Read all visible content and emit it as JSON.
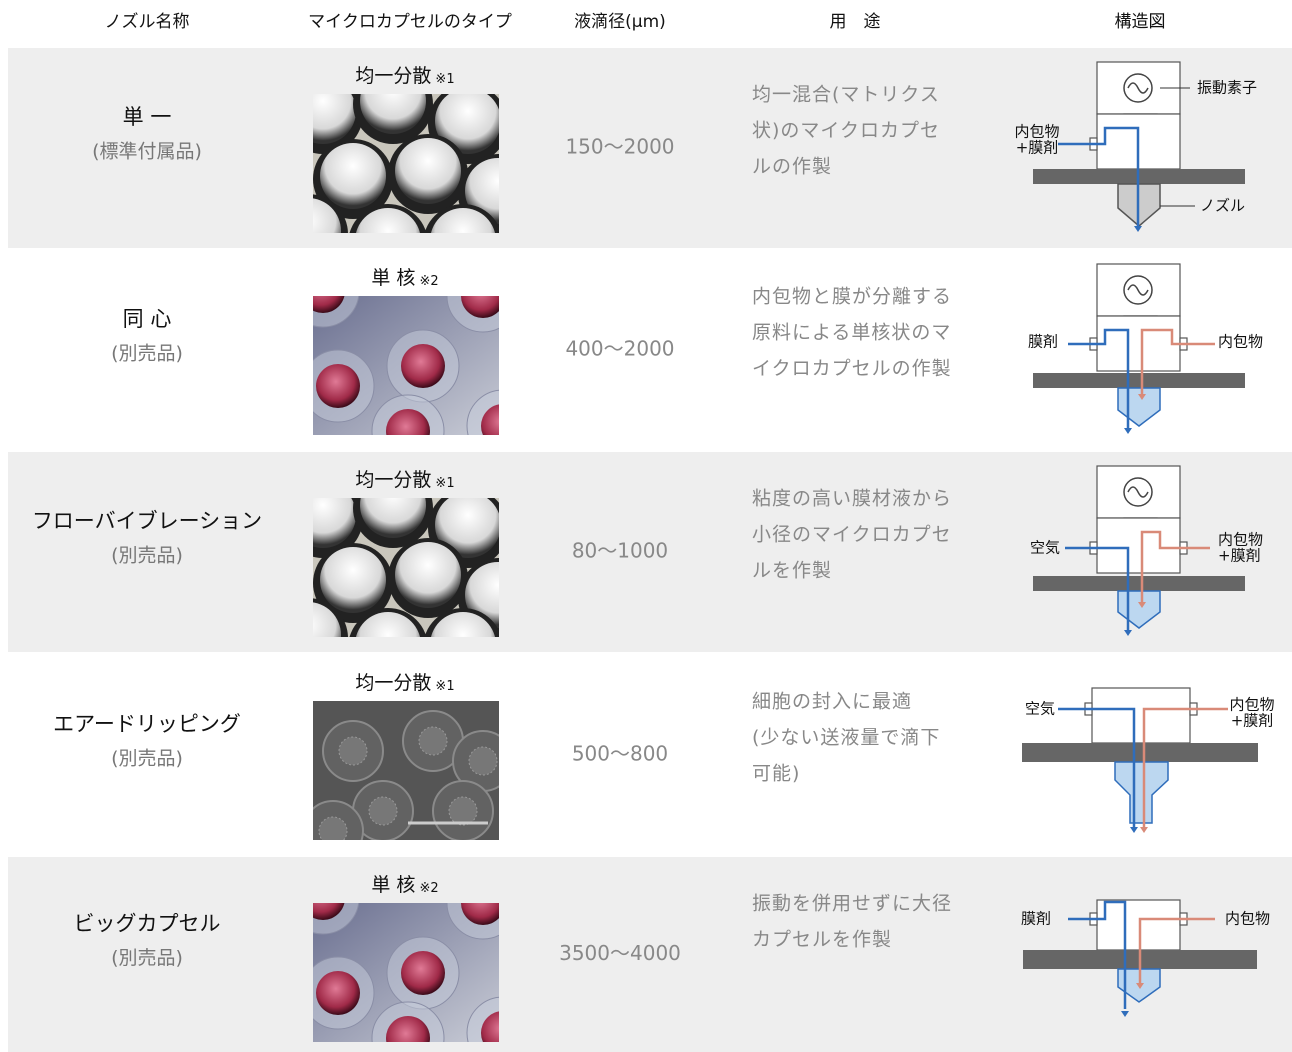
{
  "table": {
    "headers": [
      "ノズル名称",
      "マイクロカプセルのタイプ",
      "液滴径(μm)",
      "用　途",
      "構造図"
    ],
    "rows": [
      {
        "name": "単 一",
        "note": "(標準付属品)",
        "capsule_type": "均一分散",
        "footnote": "※1",
        "size": "150〜2000",
        "use": [
          "均一混合(マトリクス",
          "状)のマイクロカプセ",
          "ルの作製"
        ],
        "diagram_labels": [
          [
            "振動素子"
          ],
          [
            "内包物",
            "+膜剤"
          ],
          [
            "ノズル"
          ]
        ]
      },
      {
        "name": "同 心",
        "note": "(別売品)",
        "capsule_type": "単 核",
        "footnote": "※2",
        "size": "400〜2000",
        "use": [
          "内包物と膜が分離する",
          "原料による単核状のマ",
          "イクロカプセルの作製"
        ],
        "diagram_labels": [
          [
            "膜剤"
          ],
          [
            "内包物"
          ]
        ]
      },
      {
        "name": "フローバイブレーション",
        "note": "(別売品)",
        "capsule_type": "均一分散",
        "footnote": "※1",
        "size": "80〜1000",
        "use": [
          "粘度の高い膜材液から",
          "小径のマイクロカプセ",
          "ルを作製"
        ],
        "diagram_labels": [
          [
            "空気"
          ],
          [
            "内包物",
            "+膜剤"
          ]
        ]
      },
      {
        "name": "エアードリッピング",
        "note": "(別売品)",
        "capsule_type": "均一分散",
        "footnote": "※1",
        "size": "500〜800",
        "use": [
          "細胞の封入に最適",
          "(少ない送液量で滴下",
          "可能)"
        ],
        "diagram_labels": [
          [
            "空気"
          ],
          [
            "内包物",
            "+膜剤"
          ]
        ]
      },
      {
        "name": "ビッグカプセル",
        "note": "(別売品)",
        "capsule_type": "単 核",
        "footnote": "※2",
        "size": "3500〜4000",
        "use": [
          "振動を併用せずに大径",
          "カプセルを作製"
        ],
        "diagram_labels": [
          [
            "膜剤"
          ],
          [
            "内包物"
          ]
        ]
      }
    ]
  }
}
